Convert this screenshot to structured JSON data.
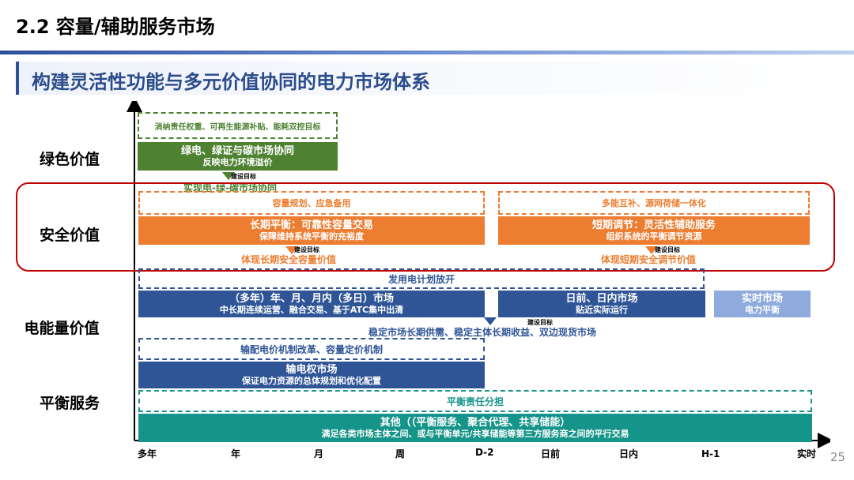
{
  "header": {
    "title": "2.2 容量/辅助服务市场",
    "subtitle": "构建灵活性功能与多元价值协同的电力市场体系",
    "page_number": "25"
  },
  "rows": {
    "green": "绿色价值",
    "safety": "安全价值",
    "energy": "电能量价值",
    "balance": "平衡服务"
  },
  "green": {
    "dashed": "消纳责任权重、可再生能源补贴、能耗双控目标",
    "box_main": "绿电、绿证与碳市场协同",
    "box_sub": "反映电力环境溢价",
    "arrow_label": "建设目标",
    "result": "实现电-绿-碳市场协同"
  },
  "safety": {
    "left_dashed": "容量规划、应急备用",
    "right_dashed": "多能互补、源网荷储一体化",
    "left_main": "长期平衡：可靠性容量交易",
    "left_sub": "保障维持系统平衡的充裕度",
    "right_main": "短期调节：灵活性辅助服务",
    "right_sub": "组织系统的平衡调节资源",
    "arrow_label": "建设目标",
    "left_result": "体现长期安全容量价值",
    "right_result": "体现短期安全调节价值"
  },
  "energy": {
    "dashed_top": "发用电计划放开",
    "left_main": "（多年）年、月、月内（多日）市场",
    "left_sub": "中长期连续运营、融合交易、基于ATC集中出清",
    "mid_main": "日前、日内市场",
    "mid_sub": "贴近实际运行",
    "right_main": "实时市场",
    "right_sub": "电力平衡",
    "arrow_label": "建设目标",
    "result": "稳定市场长期供需、稳定主体长期收益、双边现货市场",
    "dashed_bottom": "输配电价机制改革、容量定价机制",
    "trans_main": "输电权市场",
    "trans_sub": "保证电力资源的总体规划和优化配置"
  },
  "balance": {
    "dashed": "平衡责任分担",
    "main": "其他（（平衡服务、聚合代理、共享储能）",
    "sub": "满足各类市场主体之间、或与平衡单元/共享储能等第三方服务商之间的平行交易"
  },
  "axis_ticks": [
    "多年",
    "年",
    "月",
    "周",
    "D-2",
    "日前",
    "日内",
    "H-1",
    "实时"
  ],
  "colors": {
    "green": "#4e8232",
    "orange": "#ec7d31",
    "blue": "#2f5597",
    "light_blue": "#8faadc",
    "teal": "#15948a",
    "safety_frame": "#c00000",
    "title_blue": "#2b4c8c"
  }
}
